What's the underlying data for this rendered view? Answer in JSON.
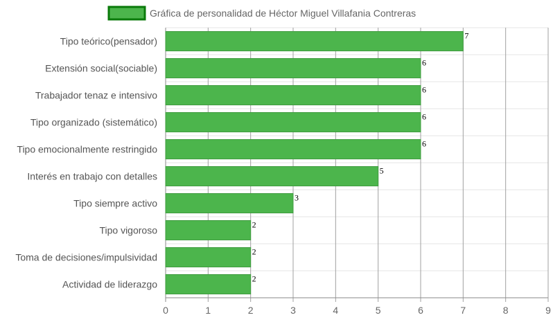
{
  "chart_data": {
    "type": "bar",
    "orientation": "horizontal",
    "categories": [
      "Tipo teórico(pensador)",
      "Extensión social(sociable)",
      "Trabajador tenaz e intensivo",
      "Tipo organizado (sistemático)",
      "Tipo emocionalmente restringido",
      "Interés en trabajo con detalles",
      "Tipo siempre activo",
      "Tipo vigoroso",
      "Toma de decisiones/impulsividad",
      "Actividad de liderazgo"
    ],
    "series": [
      {
        "name": "Gráfica de personalidad de Héctor Miguel Villafania Contreras",
        "values": [
          7,
          6,
          6,
          6,
          6,
          5,
          3,
          2,
          2,
          2
        ],
        "color": "#4cb54c",
        "border_color": "#0a7a0a"
      }
    ],
    "x_ticks": [
      "0",
      "1",
      "2",
      "3",
      "4",
      "5",
      "6",
      "7",
      "8",
      "9"
    ],
    "xlim": [
      0,
      9
    ],
    "grid": true,
    "legend_position": "top",
    "data_labels": true
  }
}
